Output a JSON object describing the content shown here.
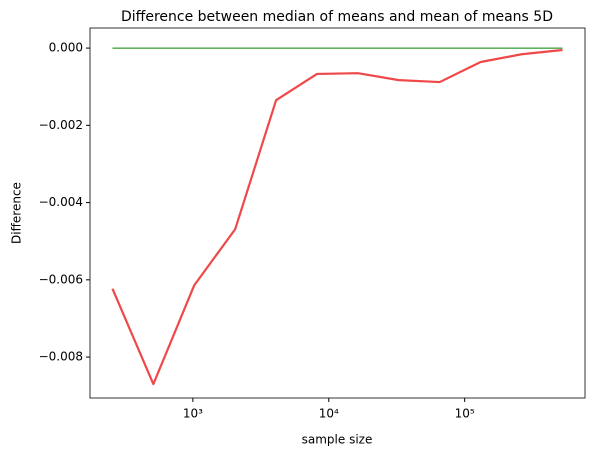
{
  "chart_data": {
    "type": "line",
    "title": "Difference between median of means and mean of means 5D",
    "xlabel": "sample size",
    "ylabel": "Difference",
    "x": [
      256,
      512,
      1024,
      2048,
      4096,
      8192,
      16384,
      32768,
      65536,
      131072,
      262144,
      524288
    ],
    "series": [
      {
        "color": "#f04848",
        "values": [
          -0.00623,
          -0.0087,
          -0.00614,
          -0.00469,
          -0.00135,
          -0.00067,
          -0.00065,
          -0.00083,
          -0.00088,
          -0.00036,
          -0.00016,
          -5e-05
        ]
      },
      {
        "color": "green",
        "values": [
          0,
          0,
          0,
          0,
          0,
          0,
          0,
          0,
          0,
          0,
          0,
          0
        ]
      }
    ],
    "xscale": "log",
    "xlim": [
      175,
      768000
    ],
    "xticks": [
      {
        "value": 1000,
        "label": "10³"
      },
      {
        "value": 10000,
        "label": "10⁴"
      },
      {
        "value": 100000,
        "label": "10⁵"
      }
    ],
    "ylim": [
      -0.00906,
      0.00052
    ],
    "yticks": [
      {
        "value": -0.008,
        "label": "−0.008"
      },
      {
        "value": -0.006,
        "label": "−0.006"
      },
      {
        "value": -0.004,
        "label": "−0.004"
      },
      {
        "value": -0.002,
        "label": "−0.002"
      },
      {
        "value": 0,
        "label": "0.000"
      }
    ]
  }
}
